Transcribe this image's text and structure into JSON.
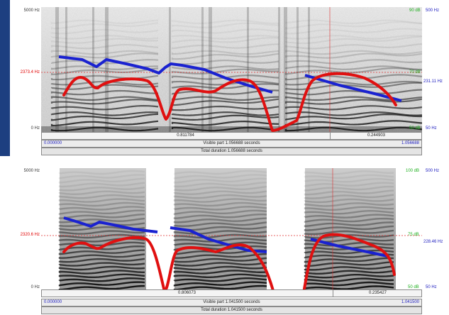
{
  "colors": {
    "pitch": "#e01010",
    "formant": "#1a22d0",
    "cursor": "#e03030",
    "selection_frame": "#7a7a7a",
    "time_link": "#2020c0",
    "db_label": "#20b020"
  },
  "panels": [
    {
      "id": "top",
      "freq_top": "5000 Hz",
      "freq_bottom": "0 Hz",
      "freq_cursor": "2373.4 Hz",
      "db_top": "90 dB",
      "db_cursor": "70 dB",
      "db_bottom": "50 dB",
      "pitch_top": "500 Hz",
      "pitch_value": "231.11 Hz",
      "pitch_bottom": "50 Hz",
      "segment_left": "0.811784",
      "segment_right": "0.244903",
      "start_time": "0.000000",
      "end_time": "1.056688",
      "visible_part": "Visible part 1.056688 seconds",
      "total_duration": "Total duration 1.056688 seconds"
    },
    {
      "id": "bottom",
      "freq_top": "5000 Hz",
      "freq_bottom": "0 Hz",
      "freq_cursor": "2320.6 Hz",
      "db_top": "100 dB",
      "db_cursor": "75 dB",
      "db_bottom": "50 dB",
      "pitch_top": "500 Hz",
      "pitch_value": "228.46 Hz",
      "pitch_bottom": "50 Hz",
      "segment_left": "0.806073",
      "segment_right": "0.235427",
      "start_time": "0.000000",
      "end_time": "1.041500",
      "visible_part": "Visible part 1.041500 seconds",
      "total_duration": "Total duration 1.041500 seconds"
    }
  ]
}
